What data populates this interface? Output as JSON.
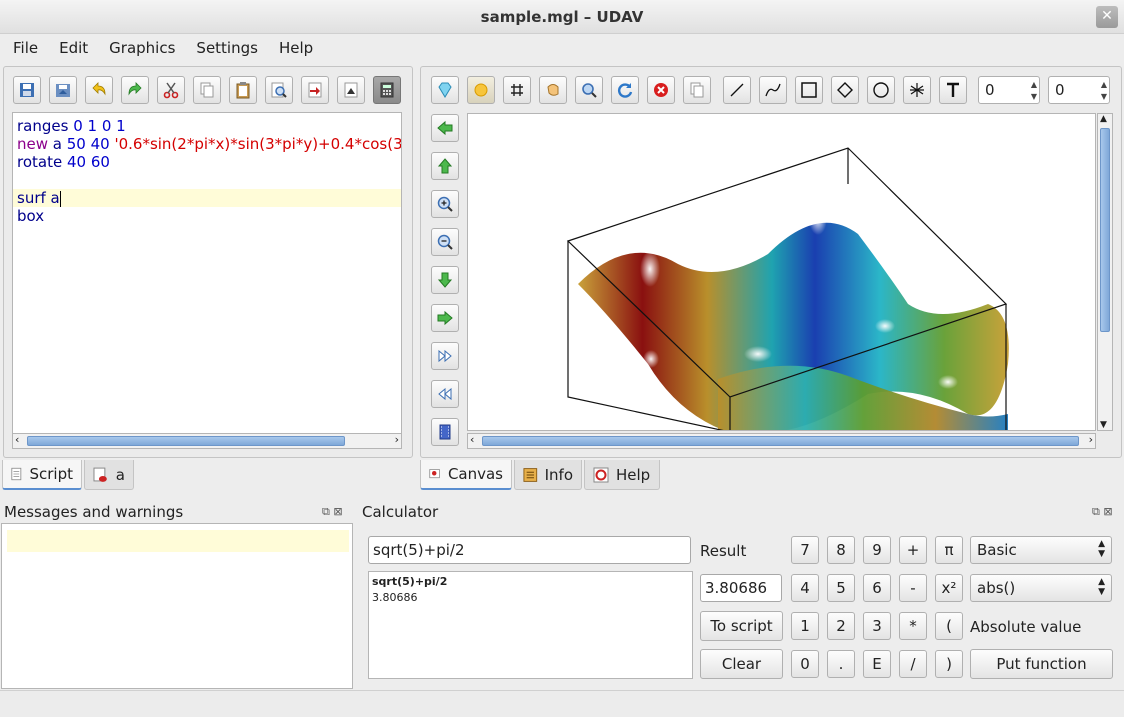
{
  "window": {
    "title": "sample.mgl – UDAV",
    "close_glyph": "✕"
  },
  "menu": [
    "File",
    "Edit",
    "Graphics",
    "Settings",
    "Help"
  ],
  "editor": {
    "lines": [
      [
        {
          "t": "ranges",
          "c": "kw"
        },
        {
          "t": " 0 1 0 1",
          "c": "num"
        }
      ],
      [
        {
          "t": "new",
          "c": "kw2"
        },
        {
          "t": " a ",
          "c": "kw"
        },
        {
          "t": "50 40 ",
          "c": "num"
        },
        {
          "t": "'0.6*sin(2*pi*x)*sin(3*pi*y)+0.4*cos(3",
          "c": "str"
        }
      ],
      [
        {
          "t": "rotate",
          "c": "kw"
        },
        {
          "t": " 40 60",
          "c": "num"
        }
      ],
      [],
      [
        {
          "t": "surf a",
          "c": "kw"
        }
      ],
      [
        {
          "t": "box",
          "c": "kw"
        }
      ]
    ]
  },
  "left_tabs": [
    {
      "label": "Script",
      "icon": "document-icon"
    },
    {
      "label": "a",
      "icon": "data-icon"
    }
  ],
  "right_tabs": [
    {
      "label": "Canvas",
      "icon": "canvas-icon"
    },
    {
      "label": "Info",
      "icon": "info-icon"
    },
    {
      "label": "Help",
      "icon": "help-icon"
    }
  ],
  "canvas": {
    "spin1": "0",
    "spin2": "0"
  },
  "messages": {
    "title": "Messages and warnings"
  },
  "calculator": {
    "title": "Calculator",
    "expression": "sqrt(5)+pi/2",
    "history_expr": "sqrt(5)+pi/2",
    "history_result": "3.80686",
    "result_label": "Result",
    "result_value": "3.80686",
    "to_script": "To script",
    "clear": "Clear",
    "keys": [
      "7",
      "8",
      "9",
      "+",
      "π",
      "4",
      "5",
      "6",
      "-",
      "x²",
      "1",
      "2",
      "3",
      "*",
      "(",
      "0",
      ".",
      "E",
      "/",
      ")"
    ],
    "category": "Basic",
    "function": "abs()",
    "function_desc": "Absolute value",
    "put_function": "Put function"
  },
  "colors": {
    "accent": "#5a8ed0",
    "keyword": "#00008b",
    "number": "#0000cc",
    "string": "#d40000"
  }
}
